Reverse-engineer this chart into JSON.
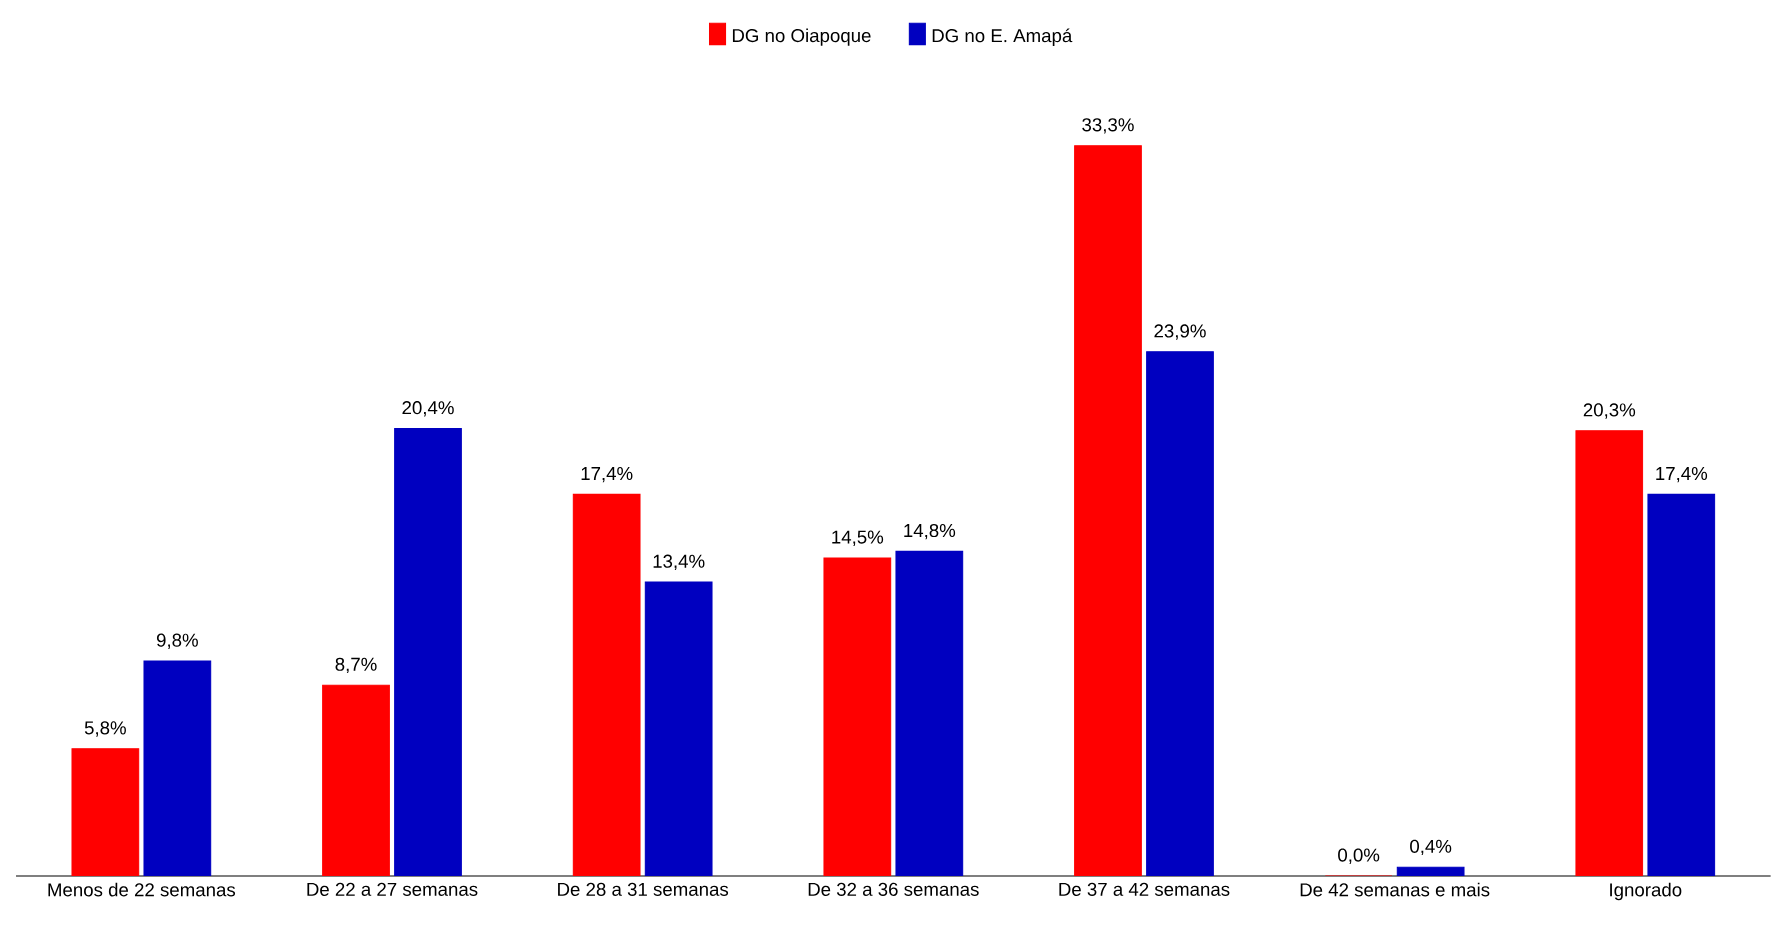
{
  "chart_data": {
    "type": "bar",
    "categories": [
      "Menos de 22 semanas",
      "De 22 a 27 semanas",
      "De 28 a 31 semanas",
      "De 32 a 36 semanas",
      "De 37 a 42 semanas",
      "De 42 semanas e mais",
      "Ignorado"
    ],
    "series": [
      {
        "name": "DG no Oiapoque",
        "color": "#ff0000",
        "values": [
          5.8,
          8.7,
          17.4,
          14.5,
          33.3,
          0.0,
          20.3
        ],
        "value_labels": [
          "5,8%",
          "8,7%",
          "17,4%",
          "14,5%",
          "33,3%",
          "0,0%",
          "20,3%"
        ]
      },
      {
        "name": "DG no E. Amapá",
        "color": "#0000c0",
        "values": [
          9.8,
          20.4,
          13.4,
          14.8,
          23.9,
          0.4,
          17.4
        ],
        "value_labels": [
          "9,8%",
          "20,4%",
          "13,4%",
          "14,8%",
          "23,9%",
          "0,4%",
          "17,4%"
        ]
      }
    ],
    "legend": "top"
  }
}
